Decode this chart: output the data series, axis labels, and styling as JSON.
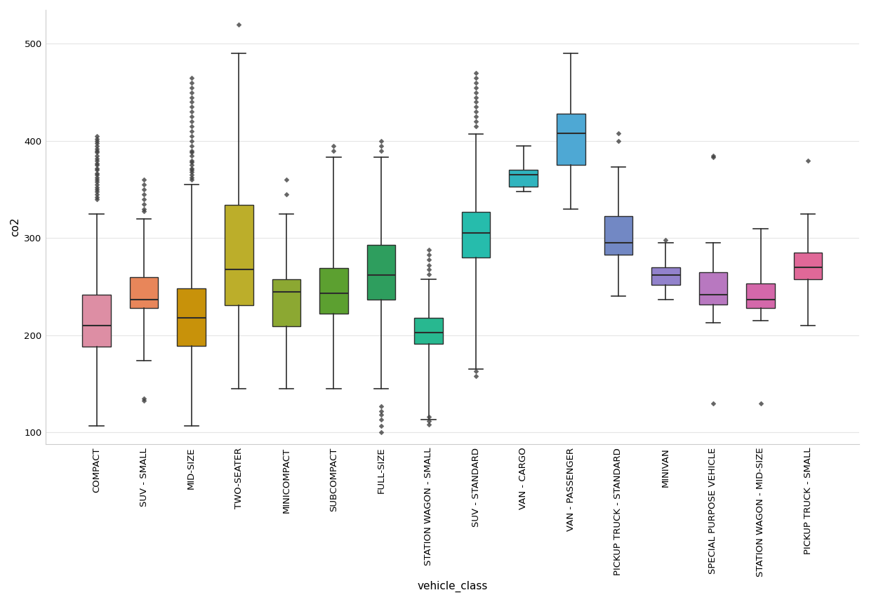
{
  "categories": [
    "COMPACT",
    "SUV - SMALL",
    "MID-SIZE",
    "TWO-SEATER",
    "MINICOMPACT",
    "SUBCOMPACT",
    "FULL-SIZE",
    "STATION WAGON - SMALL",
    "SUV - STANDARD",
    "VAN - CARGO",
    "VAN - PASSENGER",
    "PICKUP TRUCK - STANDARD",
    "MINIVAN",
    "SPECIAL PURPOSE VEHICLE",
    "STATION WAGON - MID-SIZE",
    "PICKUP TRUCK - SMALL"
  ],
  "colors": [
    "#DD8EA4",
    "#E8865A",
    "#C8920A",
    "#BCAE2A",
    "#8CA832",
    "#5CA030",
    "#2E9E5E",
    "#28B890",
    "#26BCAC",
    "#30B4BE",
    "#4EA8D4",
    "#7288C4",
    "#9282CC",
    "#B878C0",
    "#D468AA",
    "#E06898"
  ],
  "box_stats": {
    "COMPACT": {
      "whislo": 107,
      "q1": 188,
      "med": 210,
      "q3": 242,
      "whishi": 325,
      "fliers": [
        340,
        342,
        345,
        348,
        350,
        352,
        355,
        358,
        360,
        362,
        365,
        367,
        370,
        372,
        375,
        377,
        380,
        382,
        385,
        388,
        390,
        392,
        395,
        398,
        400,
        402,
        405
      ]
    },
    "SUV - SMALL": {
      "whislo": 174,
      "q1": 228,
      "med": 237,
      "q3": 260,
      "whishi": 320,
      "fliers": [
        133,
        135,
        328,
        330,
        335,
        340,
        345,
        350,
        355,
        360
      ]
    },
    "MID-SIZE": {
      "whislo": 107,
      "q1": 189,
      "med": 218,
      "q3": 248,
      "whishi": 355,
      "fliers": [
        360,
        362,
        365,
        368,
        370,
        372,
        375,
        378,
        380,
        385,
        388,
        390,
        395,
        400,
        405,
        410,
        415,
        420,
        425,
        430,
        435,
        440,
        445,
        450,
        455,
        460,
        465
      ]
    },
    "TWO-SEATER": {
      "whislo": 145,
      "q1": 231,
      "med": 268,
      "q3": 334,
      "whishi": 490,
      "fliers": [
        520
      ]
    },
    "MINICOMPACT": {
      "whislo": 145,
      "q1": 209,
      "med": 245,
      "q3": 258,
      "whishi": 325,
      "fliers": [
        345,
        360
      ]
    },
    "SUBCOMPACT": {
      "whislo": 145,
      "q1": 222,
      "med": 243,
      "q3": 269,
      "whishi": 383,
      "fliers": [
        390,
        395
      ]
    },
    "FULL-SIZE": {
      "whislo": 145,
      "q1": 237,
      "med": 262,
      "q3": 293,
      "whishi": 383,
      "fliers": [
        100,
        107,
        113,
        118,
        122,
        127,
        390,
        395,
        400
      ]
    },
    "STATION WAGON - SMALL": {
      "whislo": 113,
      "q1": 191,
      "med": 203,
      "q3": 218,
      "whishi": 258,
      "fliers": [
        108,
        112,
        116,
        263,
        268,
        272,
        278,
        283,
        288
      ]
    },
    "SUV - STANDARD": {
      "whislo": 165,
      "q1": 280,
      "med": 305,
      "q3": 327,
      "whishi": 407,
      "fliers": [
        158,
        163,
        415,
        420,
        425,
        430,
        435,
        440,
        445,
        450,
        455,
        460,
        465,
        470
      ]
    },
    "VAN - CARGO": {
      "whislo": 348,
      "q1": 353,
      "med": 365,
      "q3": 370,
      "whishi": 395,
      "fliers": []
    },
    "VAN - PASSENGER": {
      "whislo": 330,
      "q1": 375,
      "med": 408,
      "q3": 428,
      "whishi": 490,
      "fliers": []
    },
    "PICKUP TRUCK - STANDARD": {
      "whislo": 240,
      "q1": 283,
      "med": 295,
      "q3": 323,
      "whishi": 373,
      "fliers": [
        400,
        408
      ]
    },
    "MINIVAN": {
      "whislo": 237,
      "q1": 252,
      "med": 262,
      "q3": 270,
      "whishi": 295,
      "fliers": [
        298
      ]
    },
    "SPECIAL PURPOSE VEHICLE": {
      "whislo": 213,
      "q1": 232,
      "med": 242,
      "q3": 265,
      "whishi": 295,
      "fliers": [
        130,
        383,
        385
      ]
    },
    "STATION WAGON - MID-SIZE": {
      "whislo": 215,
      "q1": 228,
      "med": 237,
      "q3": 253,
      "whishi": 310,
      "fliers": [
        130
      ]
    },
    "PICKUP TRUCK - SMALL": {
      "whislo": 210,
      "q1": 258,
      "med": 270,
      "q3": 285,
      "whishi": 325,
      "fliers": [
        380
      ]
    }
  },
  "ylabel": "co2",
  "xlabel": "vehicle_class",
  "ylim": [
    88,
    535
  ],
  "yticks": [
    100,
    200,
    300,
    400,
    500
  ],
  "bg_color": "#ffffff"
}
